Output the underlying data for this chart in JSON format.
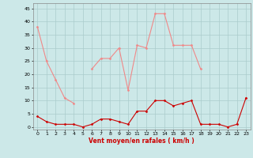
{
  "hours": [
    0,
    1,
    2,
    3,
    4,
    5,
    6,
    7,
    8,
    9,
    10,
    11,
    12,
    13,
    14,
    15,
    16,
    17,
    18,
    19,
    20,
    21,
    22,
    23
  ],
  "rafales": [
    38,
    25,
    18,
    11,
    9,
    null,
    22,
    26,
    26,
    30,
    14,
    31,
    30,
    43,
    43,
    31,
    31,
    31,
    22,
    null,
    null,
    null,
    null,
    11
  ],
  "vent_moyen": [
    4,
    2,
    1,
    1,
    1,
    0,
    1,
    3,
    3,
    2,
    1,
    6,
    6,
    10,
    10,
    8,
    9,
    10,
    1,
    1,
    1,
    0,
    1,
    11
  ],
  "bg_color": "#cce8e8",
  "grid_color": "#aacccc",
  "line_color_rafales": "#f08888",
  "line_color_vent": "#cc0000",
  "marker_color_rafales": "#f08888",
  "marker_color_vent": "#cc0000",
  "xlabel": "Vent moyen/en rafales ( km/h )",
  "xlabel_color": "#cc0000",
  "yticks": [
    0,
    5,
    10,
    15,
    20,
    25,
    30,
    35,
    40,
    45
  ],
  "xticks": [
    0,
    1,
    2,
    3,
    4,
    5,
    6,
    7,
    8,
    9,
    10,
    11,
    12,
    13,
    14,
    15,
    16,
    17,
    18,
    19,
    20,
    21,
    22,
    23
  ],
  "ylim": [
    -1,
    47
  ],
  "xlim": [
    -0.5,
    23.5
  ]
}
